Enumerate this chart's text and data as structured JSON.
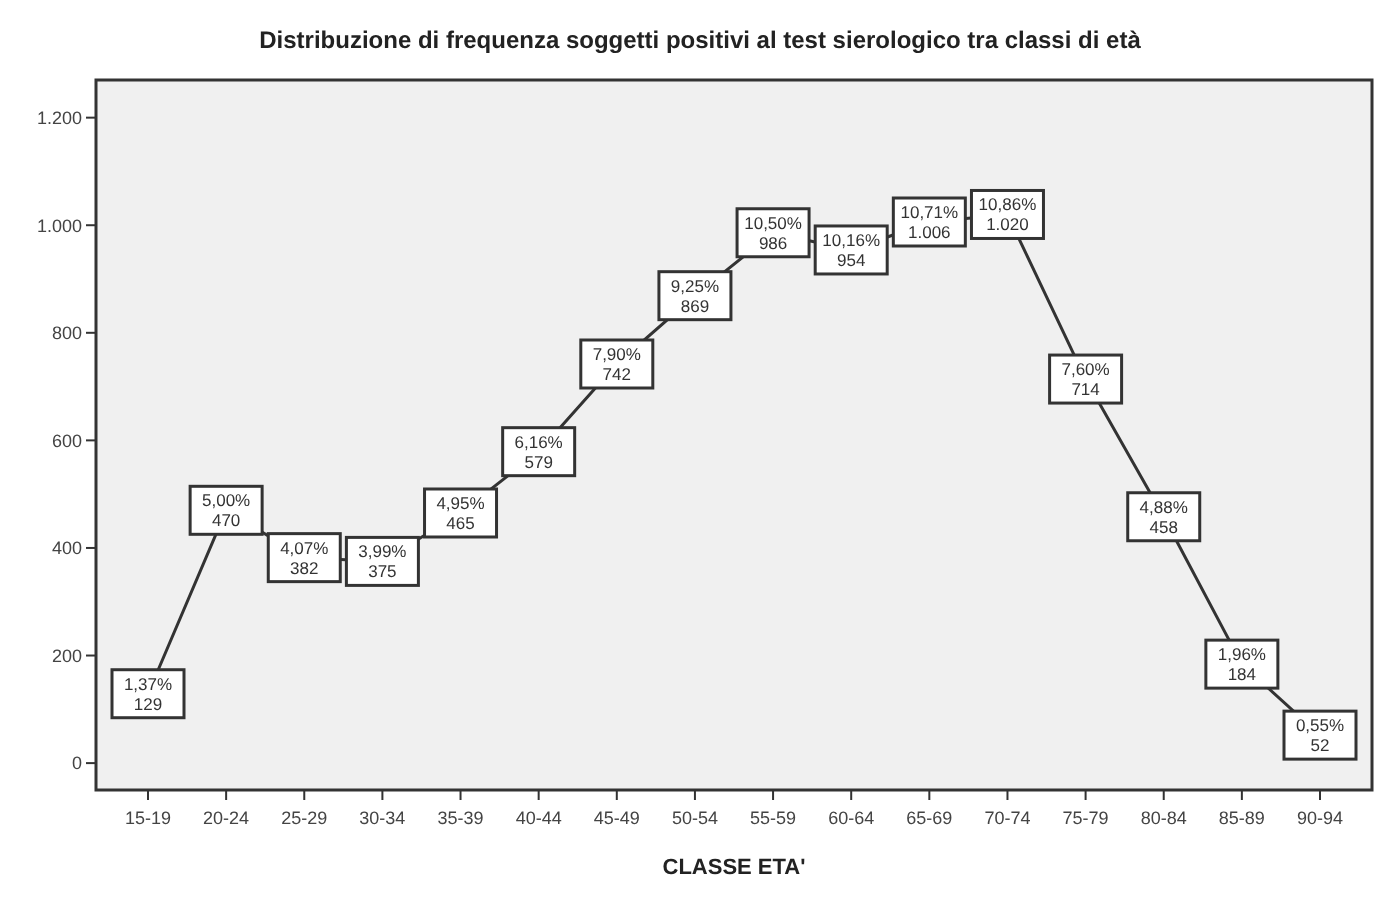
{
  "chart_data": {
    "type": "line",
    "title": "Distribuzione di frequenza soggetti positivi al test sierologico tra classi di età",
    "xlabel": "CLASSE ETA'",
    "categories": [
      "15-19",
      "20-24",
      "25-29",
      "30-34",
      "35-39",
      "40-44",
      "45-49",
      "50-54",
      "55-59",
      "60-64",
      "65-69",
      "70-74",
      "75-79",
      "80-84",
      "85-89",
      "90-94"
    ],
    "values": [
      129,
      470,
      382,
      375,
      465,
      579,
      742,
      869,
      986,
      954,
      1006,
      1020,
      714,
      458,
      184,
      52
    ],
    "value_labels": [
      "1,37%\n129",
      "5,00%\n470",
      "4,07%\n382",
      "3,99%\n375",
      "4,95%\n465",
      "6,16%\n579",
      "7,90%\n742",
      "9,25%\n869",
      "10,50%\n986",
      "10,16%\n954",
      "10,71%\n1.006",
      "10,86%\n1.020",
      "7,60%\n714",
      "4,88%\n458",
      "1,96%\n184",
      "0,55%\n52"
    ],
    "color": "#333333",
    "ylim": [
      -50,
      1270
    ],
    "yticks": [
      0,
      200,
      400,
      600,
      800,
      {
        "value": 1000,
        "label": "1.000"
      },
      {
        "value": 1200,
        "label": "1.200"
      }
    ],
    "grid": false,
    "marker": "square",
    "line_style": "solid"
  }
}
